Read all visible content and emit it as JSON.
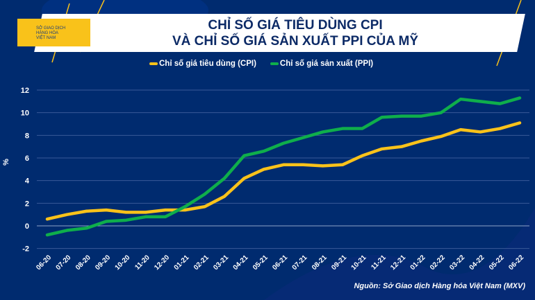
{
  "logo_text": "SỞ GIAO DỊCH HÀNG HÓA VIỆT NAM",
  "source": "Nguồn: Sở Giao dịch Hàng hóa Việt Nam (MXV)",
  "colors": {
    "background": "#002b6f",
    "cpi": "#f9c21a",
    "ppi": "#0fae4b"
  },
  "chart_data": {
    "type": "line",
    "title": [
      "CHỈ SỐ GIÁ TIÊU DÙNG CPI",
      "VÀ CHỈ SỐ GIÁ SẢN XUẤT PPI CỦA MỸ"
    ],
    "xlabel": "",
    "ylabel": "%",
    "ylim": [
      -2,
      12
    ],
    "yticks": [
      -2,
      0,
      2,
      4,
      6,
      8,
      10,
      12
    ],
    "grid": true,
    "legend_position": "top-center",
    "categories": [
      "06-20",
      "07-20",
      "08-20",
      "09-20",
      "10-20",
      "11-20",
      "12-20",
      "01-21",
      "02-21",
      "03-21",
      "04-21",
      "05-21",
      "06-21",
      "07-21",
      "08-21",
      "09-21",
      "10-21",
      "11-21",
      "12-21",
      "01-22",
      "02-22",
      "03-22",
      "04-22",
      "05-22",
      "06-22"
    ],
    "series": [
      {
        "name": "Chỉ số giá tiêu dùng (CPI)",
        "color": "#f9c21a",
        "values": [
          0.6,
          1.0,
          1.3,
          1.4,
          1.2,
          1.2,
          1.4,
          1.4,
          1.7,
          2.6,
          4.2,
          5.0,
          5.4,
          5.4,
          5.3,
          5.4,
          6.2,
          6.8,
          7.0,
          7.5,
          7.9,
          8.5,
          8.3,
          8.6,
          9.1
        ]
      },
      {
        "name": "Chỉ số giá sản xuất (PPI)",
        "color": "#0fae4b",
        "values": [
          -0.8,
          -0.4,
          -0.2,
          0.4,
          0.5,
          0.8,
          0.8,
          1.7,
          2.8,
          4.2,
          6.2,
          6.6,
          7.3,
          7.8,
          8.3,
          8.6,
          8.6,
          9.6,
          9.7,
          9.7,
          10.0,
          11.2,
          11.0,
          10.8,
          11.3
        ]
      }
    ]
  }
}
